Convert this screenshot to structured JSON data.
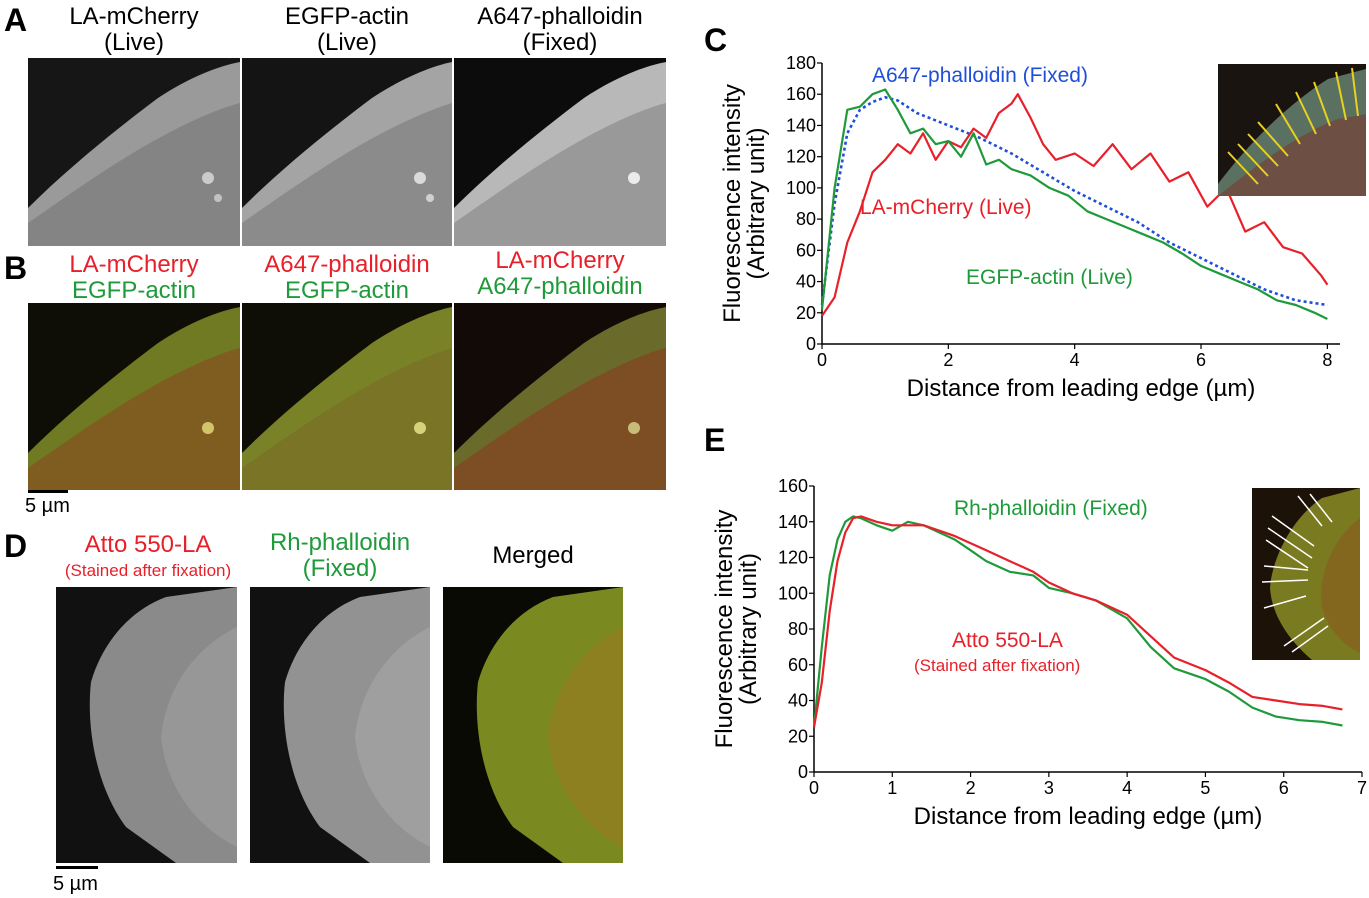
{
  "panels": {
    "A": {
      "label": "A",
      "columns": [
        {
          "line1": "LA-mCherry",
          "line2": "(Live)"
        },
        {
          "line1": "EGFP-actin",
          "line2": "(Live)"
        },
        {
          "line1": "A647-phalloidin",
          "line2": "(Fixed)"
        }
      ]
    },
    "B": {
      "label": "B",
      "columns": [
        {
          "line1": "LA-mCherry",
          "line2": "EGFP-actin"
        },
        {
          "line1": "A647-phalloidin",
          "line2": "EGFP-actin"
        },
        {
          "line1": "LA-mCherry",
          "line2": "A647-phalloidin"
        }
      ],
      "scale_bar": "5 µm"
    },
    "C": {
      "label": "C"
    },
    "D": {
      "label": "D",
      "columns": [
        {
          "line1": "Atto 550-LA",
          "line2": "(Stained after fixation)"
        },
        {
          "line1": "Rh-phalloidin",
          "line2": "(Fixed)"
        },
        {
          "line1": "Merged",
          "line2": ""
        }
      ],
      "scale_bar": "5 µm"
    },
    "E": {
      "label": "E"
    }
  },
  "colors": {
    "red": "#e8202a",
    "green": "#1f9a3a",
    "blue": "#1f4fd8"
  },
  "chart_data": [
    {
      "id": "C",
      "type": "line",
      "xlabel": "Distance from leading edge (µm)",
      "ylabel_line1": "Fluorescence intensity",
      "ylabel_line2": "(Arbitrary unit)",
      "xlim": [
        0,
        8.2
      ],
      "ylim": [
        0,
        180
      ],
      "xticks": [
        0,
        2,
        4,
        6,
        8
      ],
      "yticks": [
        0,
        20,
        40,
        60,
        80,
        100,
        120,
        140,
        160,
        180
      ],
      "annotations": [
        {
          "text": "A647-phalloidin (Fixed)",
          "color": "#1f4fd8"
        },
        {
          "text": "LA-mCherry (Live)",
          "color": "#e8202a"
        },
        {
          "text": "EGFP-actin (Live)",
          "color": "#1f9a3a"
        }
      ],
      "series": [
        {
          "name": "A647-phalloidin (Fixed)",
          "color": "#1f4fd8",
          "dashed": true,
          "x": [
            0,
            0.2,
            0.4,
            0.6,
            0.8,
            1.0,
            1.2,
            1.5,
            2.0,
            2.5,
            3.0,
            3.5,
            4.0,
            4.5,
            5.0,
            5.5,
            6.0,
            6.5,
            7.0,
            7.5,
            8.0
          ],
          "y": [
            25,
            90,
            135,
            150,
            155,
            158,
            156,
            148,
            140,
            132,
            122,
            110,
            98,
            88,
            78,
            65,
            55,
            45,
            35,
            28,
            25
          ]
        },
        {
          "name": "LA-mCherry (Live)",
          "color": "#e8202a",
          "dashed": false,
          "x": [
            0,
            0.2,
            0.4,
            0.6,
            0.8,
            1.0,
            1.2,
            1.4,
            1.6,
            1.8,
            2.0,
            2.2,
            2.4,
            2.6,
            2.8,
            3.0,
            3.1,
            3.3,
            3.5,
            3.7,
            4.0,
            4.3,
            4.6,
            4.9,
            5.2,
            5.5,
            5.8,
            6.1,
            6.4,
            6.7,
            7.0,
            7.3,
            7.6,
            7.9,
            8.0
          ],
          "y": [
            18,
            30,
            65,
            85,
            110,
            118,
            128,
            122,
            135,
            118,
            130,
            126,
            138,
            132,
            148,
            154,
            160,
            145,
            128,
            118,
            122,
            114,
            128,
            112,
            122,
            104,
            110,
            88,
            100,
            72,
            78,
            62,
            58,
            44,
            38
          ]
        },
        {
          "name": "EGFP-actin (Live)",
          "color": "#1f9a3a",
          "dashed": false,
          "x": [
            0,
            0.2,
            0.4,
            0.6,
            0.8,
            1.0,
            1.2,
            1.4,
            1.6,
            1.8,
            2.0,
            2.2,
            2.4,
            2.6,
            2.8,
            3.0,
            3.3,
            3.6,
            3.9,
            4.2,
            4.5,
            4.8,
            5.1,
            5.4,
            5.7,
            6.0,
            6.3,
            6.6,
            6.9,
            7.2,
            7.5,
            7.8,
            8.0
          ],
          "y": [
            22,
            100,
            150,
            152,
            160,
            163,
            150,
            135,
            138,
            128,
            130,
            120,
            135,
            115,
            118,
            112,
            108,
            100,
            95,
            85,
            80,
            75,
            70,
            65,
            58,
            50,
            45,
            40,
            35,
            28,
            25,
            20,
            16
          ]
        }
      ]
    },
    {
      "id": "E",
      "type": "line",
      "xlabel": "Distance from leading edge (µm)",
      "ylabel_line1": "Fluorescence intensity",
      "ylabel_line2": "(Arbitrary unit)",
      "xlim": [
        0,
        7
      ],
      "ylim": [
        0,
        160
      ],
      "xticks": [
        0,
        1,
        2,
        3,
        4,
        5,
        6,
        7
      ],
      "yticks": [
        0,
        20,
        40,
        60,
        80,
        100,
        120,
        140,
        160
      ],
      "annotations": [
        {
          "text": "Rh-phalloidin (Fixed)",
          "color": "#1f9a3a"
        },
        {
          "text": "Atto 550-LA",
          "color": "#e8202a"
        },
        {
          "text": "(Stained after fixation)",
          "color": "#e8202a"
        }
      ],
      "series": [
        {
          "name": "Rh-phalloidin (Fixed)",
          "color": "#1f9a3a",
          "dashed": false,
          "x": [
            0,
            0.1,
            0.2,
            0.3,
            0.4,
            0.5,
            0.6,
            0.8,
            1.0,
            1.2,
            1.4,
            1.6,
            1.8,
            2.0,
            2.2,
            2.5,
            2.8,
            3.0,
            3.3,
            3.6,
            4.0,
            4.3,
            4.6,
            5.0,
            5.3,
            5.6,
            5.9,
            6.2,
            6.5,
            6.75
          ],
          "y": [
            25,
            70,
            110,
            130,
            140,
            143,
            142,
            138,
            135,
            140,
            138,
            134,
            130,
            124,
            118,
            112,
            110,
            103,
            100,
            96,
            86,
            70,
            58,
            52,
            45,
            36,
            31,
            29,
            28,
            26
          ]
        },
        {
          "name": "Atto 550-LA",
          "color": "#e8202a",
          "dashed": false,
          "x": [
            0,
            0.1,
            0.2,
            0.3,
            0.4,
            0.5,
            0.6,
            0.8,
            1.0,
            1.2,
            1.4,
            1.6,
            1.8,
            2.0,
            2.2,
            2.5,
            2.8,
            3.0,
            3.3,
            3.6,
            4.0,
            4.3,
            4.6,
            5.0,
            5.3,
            5.6,
            5.9,
            6.2,
            6.5,
            6.75
          ],
          "y": [
            25,
            50,
            90,
            118,
            134,
            142,
            143,
            140,
            138,
            138,
            138,
            135,
            132,
            128,
            124,
            118,
            112,
            106,
            100,
            96,
            88,
            76,
            64,
            57,
            50,
            42,
            40,
            38,
            37,
            35
          ]
        }
      ]
    }
  ]
}
